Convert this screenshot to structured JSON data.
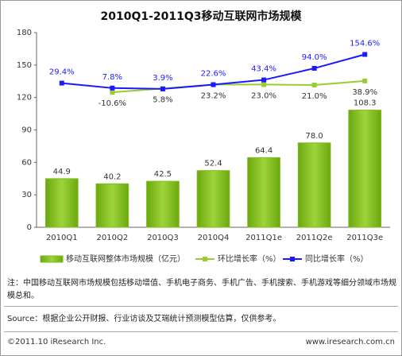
{
  "chart_data": {
    "type": "bar",
    "title": "2010Q1-2011Q3移动互联网市场规模",
    "categories": [
      "2010Q1",
      "2010Q2",
      "2010Q3",
      "2010Q4",
      "2011Q1e",
      "2011Q2e",
      "2011Q3e"
    ],
    "series": [
      {
        "name": "移动互联网整体市场规模（亿元）",
        "type": "bar",
        "color": "#7fba1e",
        "values": [
          44.9,
          40.2,
          42.5,
          52.4,
          64.4,
          78.0,
          108.3
        ],
        "value_labels": [
          "44.9",
          "40.2",
          "42.5",
          "52.4",
          "64.4",
          "78.0",
          "108.3"
        ]
      },
      {
        "name": "环比增长率（%）",
        "type": "line",
        "axis": "y2",
        "color": "#99cc33",
        "values": [
          null,
          -10.6,
          5.8,
          23.2,
          23.0,
          21.0,
          38.9
        ],
        "value_labels": [
          null,
          "-10.6%",
          "5.8%",
          "23.2%",
          "23.0%",
          "21.0%",
          "38.9%"
        ]
      },
      {
        "name": "同比增长率（%）",
        "type": "line",
        "axis": "y2",
        "color": "#1a1aff",
        "values": [
          29.4,
          7.8,
          3.9,
          22.6,
          43.4,
          94.0,
          154.6
        ],
        "value_labels": [
          "29.4%",
          "7.8%",
          "3.9%",
          "22.6%",
          "43.4%",
          "94.0%",
          "154.6%"
        ]
      }
    ],
    "ylim": [
      0,
      180
    ],
    "yticks": [
      0,
      30,
      60,
      90,
      120,
      150,
      180
    ],
    "y2lim": [
      -600,
      250
    ],
    "note": "注：中国移动互联网市场规模包括移动增值、手机电子商务、手机广告、手机搜索、手机游戏等细分领域市场规模总和。",
    "source": "Source：根据企业公开财报、行业访谈及艾瑞统计预测模型估算，仅供参考。",
    "copyright": "©2011.10 iResearch Inc.",
    "website": "www.iresearch.com.cn"
  }
}
